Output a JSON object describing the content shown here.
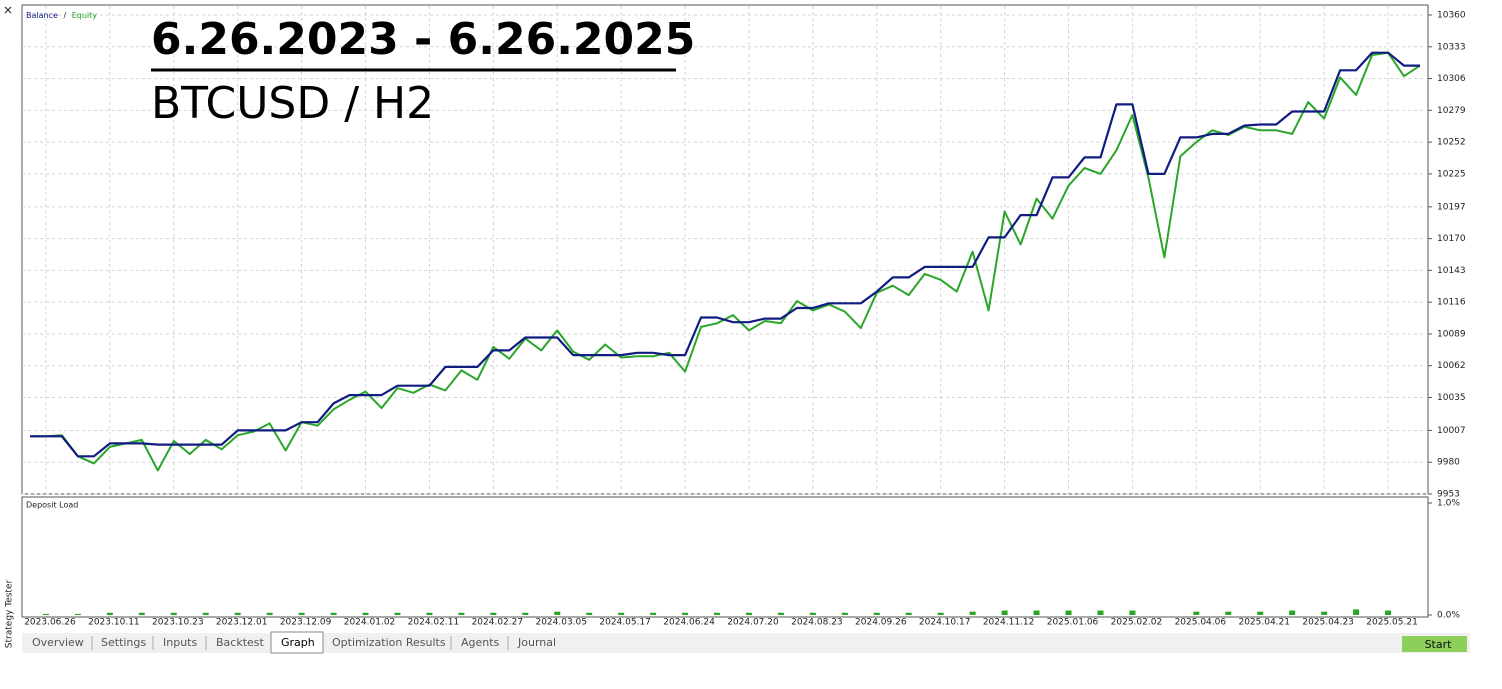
{
  "chart_data": [
    {
      "type": "line",
      "legend_separator": "/",
      "ylim": [
        9953,
        10360
      ],
      "yticks": [
        9953,
        9980,
        10007,
        10035,
        10062,
        10089,
        10116,
        10143,
        10170,
        10197,
        10225,
        10252,
        10279,
        10306,
        10333,
        10360
      ],
      "grid": true,
      "series": [
        {
          "name": "Balance",
          "color": "#101c80",
          "values": [
            10002,
            10002,
            10002,
            9985,
            9985,
            9996,
            9996,
            9996,
            9995,
            9995,
            9995,
            9995,
            9995,
            10007,
            10007,
            10007,
            10007,
            10014,
            10014,
            10030,
            10037,
            10037,
            10037,
            10045,
            10045,
            10045,
            10061,
            10061,
            10061,
            10075,
            10075,
            10086,
            10086,
            10086,
            10071,
            10071,
            10071,
            10071,
            10073,
            10073,
            10071,
            10071,
            10103,
            10103,
            10099,
            10099,
            10102,
            10102,
            10111,
            10111,
            10115,
            10115,
            10115,
            10125,
            10137,
            10137,
            10146,
            10146,
            10146,
            10146,
            10171,
            10171,
            10190,
            10190,
            10222,
            10222,
            10239,
            10239,
            10284,
            10284,
            10225,
            10225,
            10256,
            10256,
            10259,
            10259,
            10266,
            10267,
            10267,
            10278,
            10278,
            10278,
            10313,
            10313,
            10328,
            10328,
            10317,
            10317
          ]
        },
        {
          "name": "Equity",
          "color": "#2aa52a",
          "values": [
            10002,
            10002,
            10003,
            9985,
            9979,
            9993,
            9996,
            9999,
            9973,
            9998,
            9987,
            9999,
            9991,
            10003,
            10006,
            10013,
            9990,
            10014,
            10011,
            10025,
            10033,
            10040,
            10026,
            10043,
            10039,
            10046,
            10041,
            10058,
            10050,
            10078,
            10068,
            10085,
            10075,
            10092,
            10074,
            10067,
            10080,
            10069,
            10070,
            10070,
            10073,
            10057,
            10095,
            10098,
            10105,
            10092,
            10100,
            10098,
            10117,
            10109,
            10114,
            10108,
            10094,
            10124,
            10130,
            10122,
            10140,
            10135,
            10125,
            10159,
            10109,
            10193,
            10165,
            10204,
            10187,
            10215,
            10230,
            10225,
            10245,
            10275,
            10222,
            10154,
            10240,
            10252,
            10262,
            10258,
            10265,
            10262,
            10262,
            10259,
            10286,
            10272,
            10307,
            10292,
            10326,
            10328,
            10308,
            10317
          ]
        }
      ]
    },
    {
      "type": "bar",
      "title": "Deposit Load",
      "color": "#2aa52a",
      "ylim": [
        0,
        1
      ],
      "yticks": [
        {
          "value": 1,
          "label": "1.0%"
        },
        {
          "value": 0,
          "label": "0.0%"
        }
      ],
      "grid": false,
      "categories": [
        null,
        "2023.06.26",
        null,
        null,
        null,
        "2023.10.11",
        null,
        null,
        null,
        "2023.10.23",
        null,
        null,
        null,
        "2023.12.01",
        null,
        null,
        null,
        "2023.12.09",
        null,
        null,
        null,
        "2024.01.02",
        null,
        null,
        null,
        "2024.02.11",
        null,
        null,
        null,
        "2024.02.27",
        null,
        null,
        null,
        "2024.03.05",
        null,
        null,
        null,
        "2024.05.17",
        null,
        null,
        null,
        "2024.06.24",
        null,
        null,
        null,
        "2024.07.20",
        null,
        null,
        null,
        "2024.08.23",
        null,
        null,
        null,
        "2024.09.26",
        null,
        null,
        null,
        "2024.10.17",
        null,
        null,
        null,
        "2024.11.12",
        null,
        null,
        null,
        "2025.01.06",
        null,
        null,
        null,
        "2025.02.02",
        null,
        null,
        null,
        "2025.04.06",
        null,
        null,
        null,
        "2025.04.21",
        null,
        null,
        null,
        "2025.04.23",
        null,
        null,
        null,
        "2025.05.21",
        null,
        null
      ],
      "values": [
        null,
        0.01,
        null,
        0.01,
        null,
        0.02,
        null,
        0.02,
        null,
        0.02,
        null,
        0.02,
        null,
        0.02,
        null,
        0.02,
        null,
        0.02,
        null,
        0.02,
        null,
        0.02,
        null,
        0.02,
        null,
        0.02,
        null,
        0.02,
        null,
        0.02,
        null,
        0.02,
        null,
        0.03,
        null,
        0.02,
        null,
        0.02,
        null,
        0.02,
        null,
        0.02,
        null,
        0.02,
        null,
        0.02,
        null,
        0.02,
        null,
        0.02,
        null,
        0.02,
        null,
        0.02,
        null,
        0.02,
        null,
        0.02,
        null,
        0.03,
        null,
        0.04,
        null,
        0.04,
        null,
        0.04,
        null,
        0.04,
        null,
        0.04,
        null,
        null,
        null,
        0.03,
        null,
        0.03,
        null,
        0.03,
        null,
        0.04,
        null,
        0.03,
        null,
        0.05,
        null,
        0.04,
        null,
        null
      ]
    }
  ],
  "overlay": {
    "date_range": "6.26.2023 - 6.26.2025",
    "symbol": "BTCUSD / H2"
  },
  "side_label": "Strategy Tester",
  "tabs": [
    "Overview",
    "Settings",
    "Inputs",
    "Backtest",
    "Graph",
    "Optimization Results",
    "Agents",
    "Journal"
  ],
  "start_button": "Start"
}
